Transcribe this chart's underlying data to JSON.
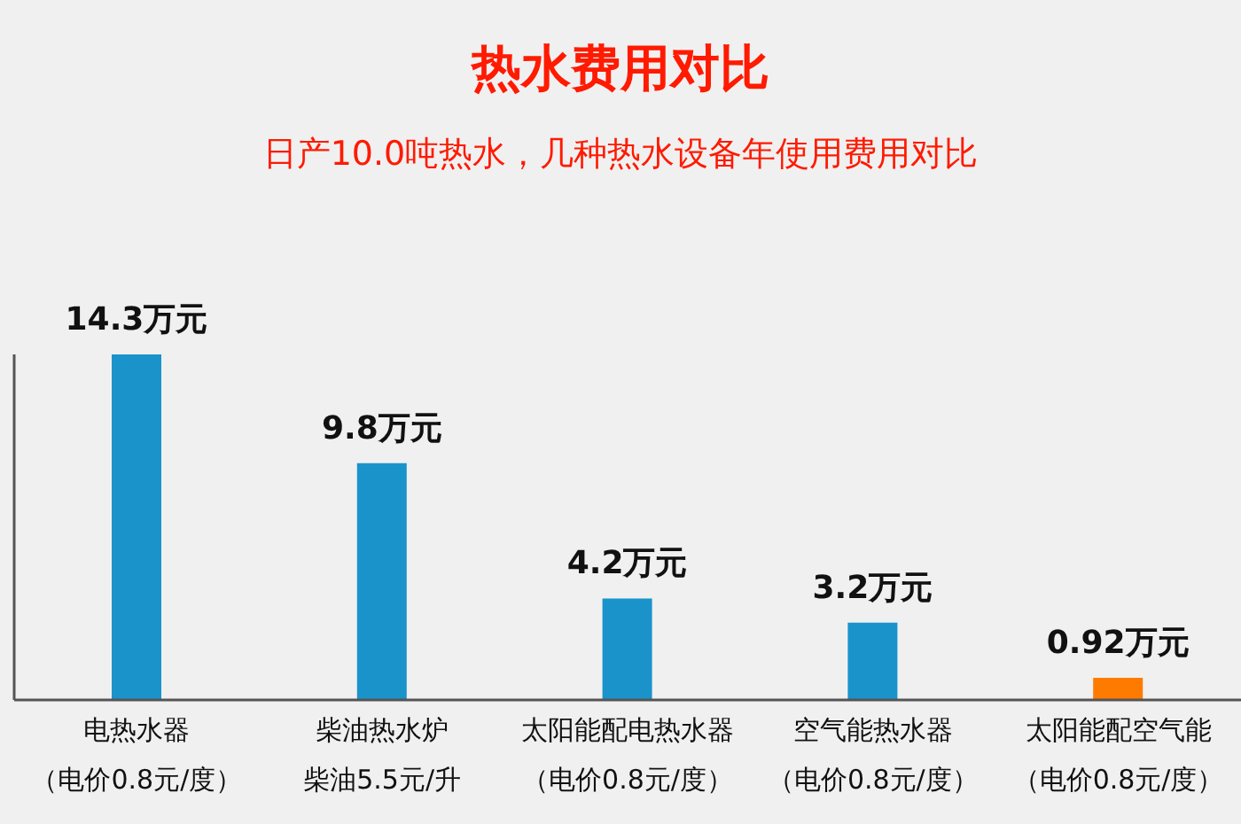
{
  "chart_data": {
    "type": "bar",
    "title": "热水费用对比",
    "subtitle": "日产10.0吨热水，几种热水设备年使用费用对比",
    "categories": [
      "电热水器（电价0.8元/度）",
      "柴油热水炉柴油5.5元/升",
      "太阳能配电热水器（电价0.8元/度）",
      "空气能热水器（电价0.8元/度）",
      "太阳能配空气能（电价0.8元/度）"
    ],
    "values": [
      14.3,
      9.8,
      4.2,
      3.2,
      0.92
    ],
    "colors": [
      "#1a93cb",
      "#1a93cb",
      "#1a93cb",
      "#1a93cb",
      "#ff7b00"
    ],
    "value_labels": [
      "14.3万元",
      "9.8万元",
      "4.2万元",
      "3.2万元",
      "0.92万元"
    ]
  }
}
